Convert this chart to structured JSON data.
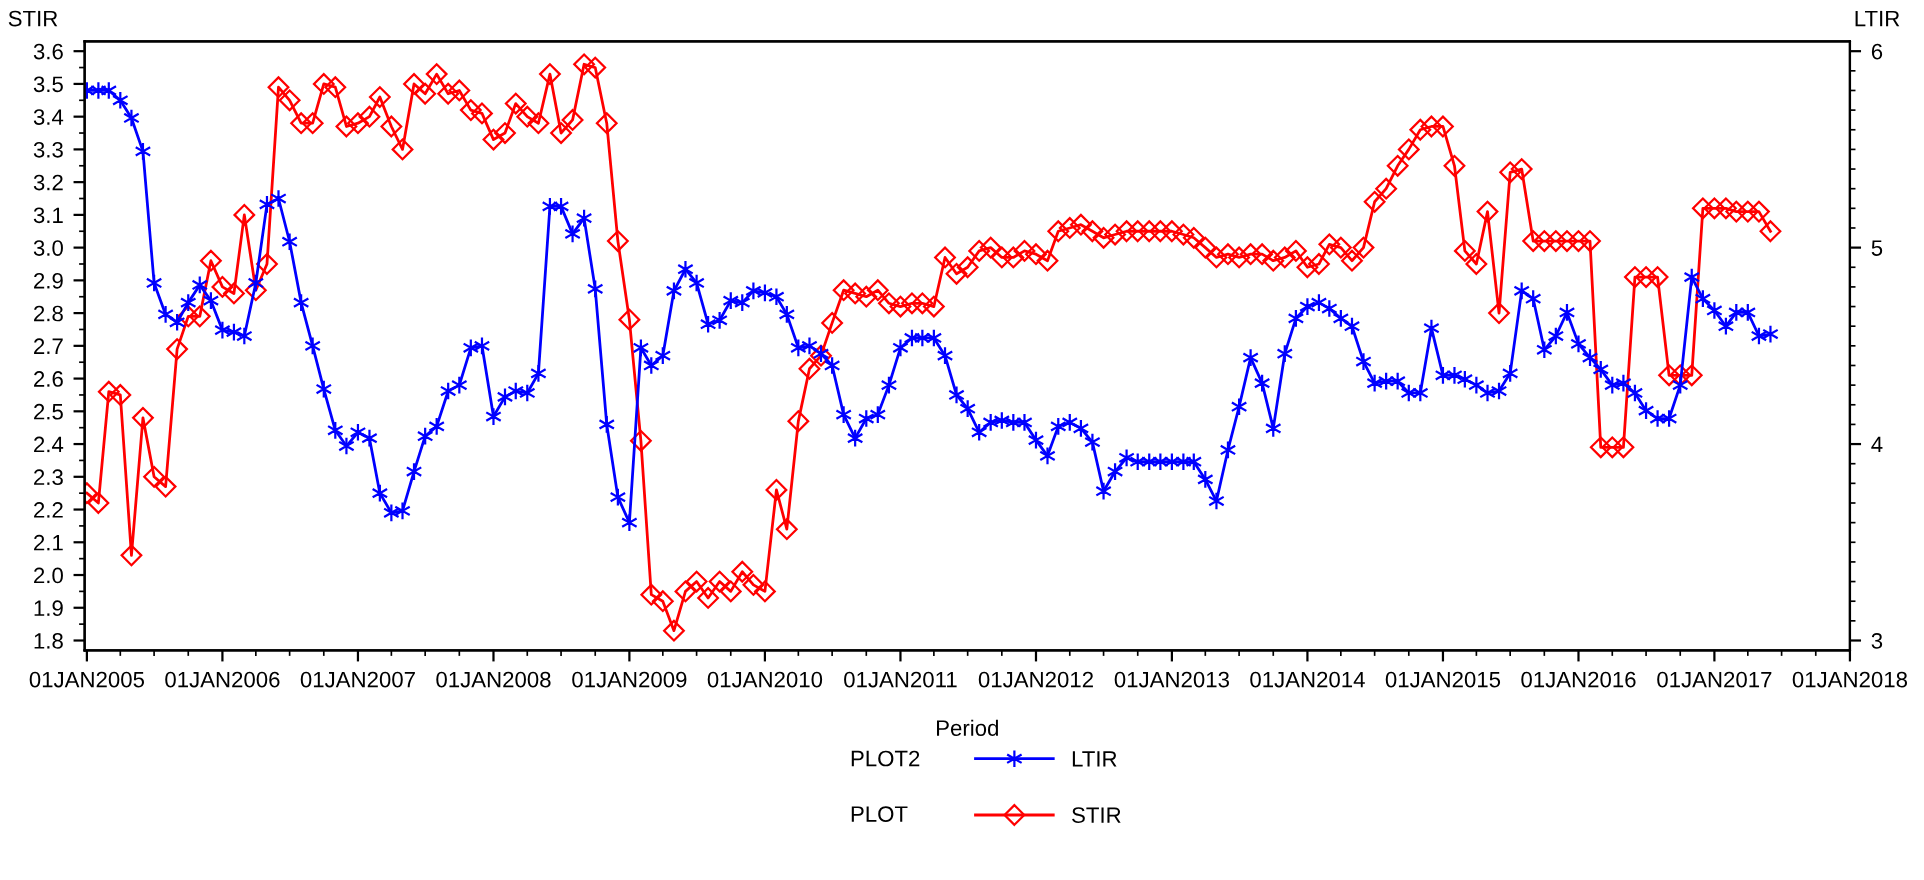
{
  "chart_data": {
    "type": "line",
    "xlabel": "Period",
    "ylabel": "STIR",
    "y2label": "LTIR",
    "x": [
      "2005-01",
      "2005-02",
      "2005-03",
      "2005-04",
      "2005-05",
      "2005-06",
      "2005-07",
      "2005-08",
      "2005-09",
      "2005-10",
      "2005-11",
      "2005-12",
      "2006-01",
      "2006-02",
      "2006-03",
      "2006-04",
      "2006-05",
      "2006-06",
      "2006-07",
      "2006-08",
      "2006-09",
      "2006-10",
      "2006-11",
      "2006-12",
      "2007-01",
      "2007-02",
      "2007-03",
      "2007-04",
      "2007-05",
      "2007-06",
      "2007-07",
      "2007-08",
      "2007-09",
      "2007-10",
      "2007-11",
      "2007-12",
      "2008-01",
      "2008-02",
      "2008-03",
      "2008-04",
      "2008-05",
      "2008-06",
      "2008-07",
      "2008-08",
      "2008-09",
      "2008-10",
      "2008-11",
      "2008-12",
      "2009-01",
      "2009-02",
      "2009-03",
      "2009-04",
      "2009-05",
      "2009-06",
      "2009-07",
      "2009-08",
      "2009-09",
      "2009-10",
      "2009-11",
      "2009-12",
      "2010-01",
      "2010-02",
      "2010-03",
      "2010-04",
      "2010-05",
      "2010-06",
      "2010-07",
      "2010-08",
      "2010-09",
      "2010-10",
      "2010-11",
      "2010-12",
      "2011-01",
      "2011-02",
      "2011-03",
      "2011-04",
      "2011-05",
      "2011-06",
      "2011-07",
      "2011-08",
      "2011-09",
      "2011-10",
      "2011-11",
      "2011-12",
      "2012-01",
      "2012-02",
      "2012-03",
      "2012-04",
      "2012-05",
      "2012-06",
      "2012-07",
      "2012-08",
      "2012-09",
      "2012-10",
      "2012-11",
      "2012-12",
      "2013-01",
      "2013-02",
      "2013-03",
      "2013-04",
      "2013-05",
      "2013-06",
      "2013-07",
      "2013-08",
      "2013-09",
      "2013-10",
      "2013-11",
      "2013-12",
      "2014-01",
      "2014-02",
      "2014-03",
      "2014-04",
      "2014-05",
      "2014-06",
      "2014-07",
      "2014-08",
      "2014-09",
      "2014-10",
      "2014-11",
      "2014-12",
      "2015-01",
      "2015-02",
      "2015-03",
      "2015-04",
      "2015-05",
      "2015-06",
      "2015-07",
      "2015-08",
      "2015-09",
      "2015-10",
      "2015-11",
      "2015-12",
      "2016-01",
      "2016-02",
      "2016-03",
      "2016-04",
      "2016-05",
      "2016-06",
      "2016-07",
      "2016-08",
      "2016-09",
      "2016-10",
      "2016-11",
      "2016-12",
      "2017-01",
      "2017-02",
      "2017-03",
      "2017-04",
      "2017-05",
      "2017-06"
    ],
    "series": [
      {
        "name": "LTIR",
        "color": "#0000ff",
        "axis": "y2",
        "marker": "cross",
        "values": [
          5.8,
          5.8,
          5.8,
          5.75,
          5.66,
          5.49,
          4.82,
          4.66,
          4.62,
          4.72,
          4.81,
          4.73,
          4.58,
          4.57,
          4.55,
          4.82,
          5.22,
          5.25,
          5.03,
          4.72,
          4.5,
          4.28,
          4.07,
          3.99,
          4.06,
          4.03,
          3.75,
          3.65,
          3.66,
          3.86,
          4.04,
          4.09,
          4.27,
          4.3,
          4.49,
          4.5,
          4.14,
          4.24,
          4.27,
          4.26,
          4.36,
          5.21,
          5.21,
          5.07,
          5.15,
          4.79,
          4.1,
          3.73,
          3.6,
          4.49,
          4.4,
          4.45,
          4.78,
          4.89,
          4.82,
          4.61,
          4.63,
          4.73,
          4.72,
          4.78,
          4.77,
          4.75,
          4.66,
          4.49,
          4.5,
          4.46,
          4.4,
          4.15,
          4.03,
          4.13,
          4.15,
          4.3,
          4.49,
          4.54,
          4.54,
          4.54,
          4.45,
          4.25,
          4.18,
          4.06,
          4.11,
          4.12,
          4.11,
          4.11,
          4.02,
          3.94,
          4.09,
          4.11,
          4.08,
          4.01,
          3.76,
          3.86,
          3.93,
          3.91,
          3.91,
          3.91,
          3.91,
          3.91,
          3.91,
          3.82,
          3.71,
          3.97,
          4.19,
          4.44,
          4.31,
          4.08,
          4.46,
          4.64,
          4.7,
          4.72,
          4.69,
          4.64,
          4.6,
          4.42,
          4.31,
          4.32,
          4.32,
          4.26,
          4.26,
          4.59,
          4.35,
          4.35,
          4.33,
          4.3,
          4.26,
          4.27,
          4.36,
          4.78,
          4.74,
          4.48,
          4.55,
          4.67,
          4.51,
          4.44,
          4.38,
          4.3,
          4.31,
          4.26,
          4.17,
          4.13,
          4.13,
          4.3,
          4.85,
          4.74,
          4.68,
          4.6,
          4.67,
          4.67,
          4.55,
          4.56
        ]
      },
      {
        "name": "STIR",
        "color": "#ff0000",
        "axis": "y",
        "marker": "diamond",
        "values": [
          2.25,
          2.22,
          2.56,
          2.55,
          2.06,
          2.48,
          2.3,
          2.27,
          2.69,
          2.79,
          2.79,
          2.96,
          2.88,
          2.86,
          3.1,
          2.87,
          2.95,
          3.49,
          3.45,
          3.38,
          3.38,
          3.5,
          3.49,
          3.37,
          3.38,
          3.4,
          3.46,
          3.37,
          3.3,
          3.5,
          3.47,
          3.53,
          3.47,
          3.48,
          3.42,
          3.41,
          3.33,
          3.35,
          3.44,
          3.4,
          3.38,
          3.53,
          3.35,
          3.39,
          3.56,
          3.55,
          3.38,
          3.02,
          2.78,
          2.41,
          1.94,
          1.92,
          1.83,
          1.95,
          1.98,
          1.93,
          1.98,
          1.95,
          2.01,
          1.97,
          1.95,
          2.26,
          2.14,
          2.47,
          2.63,
          2.67,
          2.77,
          2.87,
          2.86,
          2.85,
          2.87,
          2.83,
          2.82,
          2.83,
          2.83,
          2.82,
          2.97,
          2.92,
          2.94,
          2.99,
          3.0,
          2.97,
          2.97,
          2.99,
          2.98,
          2.96,
          3.05,
          3.06,
          3.07,
          3.05,
          3.03,
          3.04,
          3.05,
          3.05,
          3.05,
          3.05,
          3.05,
          3.04,
          3.03,
          3.0,
          2.97,
          2.98,
          2.97,
          2.98,
          2.98,
          2.96,
          2.97,
          2.99,
          2.94,
          2.95,
          3.01,
          3.0,
          2.96,
          3.0,
          3.14,
          3.18,
          3.25,
          3.3,
          3.36,
          3.37,
          3.37,
          3.25,
          2.99,
          2.95,
          3.11,
          2.8,
          3.23,
          3.24,
          3.02,
          3.02,
          3.02,
          3.02,
          3.02,
          3.02,
          2.39,
          2.39,
          2.39,
          2.91,
          2.91,
          2.91,
          2.61,
          2.61,
          2.61,
          3.12,
          3.12,
          3.12,
          3.11,
          3.11,
          3.11,
          3.05
        ]
      }
    ],
    "xlim": [
      "2004-12-26",
      "2018-01-01"
    ],
    "xticks": [
      {
        "value": "2005-01-01",
        "label": "01JAN2005"
      },
      {
        "value": "2006-01-01",
        "label": "01JAN2006"
      },
      {
        "value": "2007-01-01",
        "label": "01JAN2007"
      },
      {
        "value": "2008-01-01",
        "label": "01JAN2008"
      },
      {
        "value": "2009-01-01",
        "label": "01JAN2009"
      },
      {
        "value": "2010-01-01",
        "label": "01JAN2010"
      },
      {
        "value": "2011-01-01",
        "label": "01JAN2011"
      },
      {
        "value": "2012-01-01",
        "label": "01JAN2012"
      },
      {
        "value": "2013-01-01",
        "label": "01JAN2013"
      },
      {
        "value": "2014-01-01",
        "label": "01JAN2014"
      },
      {
        "value": "2015-01-01",
        "label": "01JAN2015"
      },
      {
        "value": "2016-01-01",
        "label": "01JAN2016"
      },
      {
        "value": "2017-01-01",
        "label": "01JAN2017"
      },
      {
        "value": "2018-01-01",
        "label": "01JAN2018"
      }
    ],
    "ylim": [
      1.77,
      3.63
    ],
    "yticks": [
      1.8,
      1.9,
      {
        "value": 2,
        "label": "2.0"
      },
      2.1,
      2.2,
      2.3,
      2.4,
      2.5,
      2.6,
      2.7,
      2.8,
      2.9,
      {
        "value": 3,
        "label": "3.0"
      },
      3.1,
      3.2,
      3.3,
      3.4,
      3.5,
      3.6
    ],
    "y2lim": [
      2.95,
      6.05
    ],
    "y2ticks": [
      3,
      4,
      5,
      6
    ],
    "grid": false,
    "legend": "bottom",
    "line_style": "solid",
    "annotations": [
      "PLOT2",
      "PLOT"
    ]
  }
}
